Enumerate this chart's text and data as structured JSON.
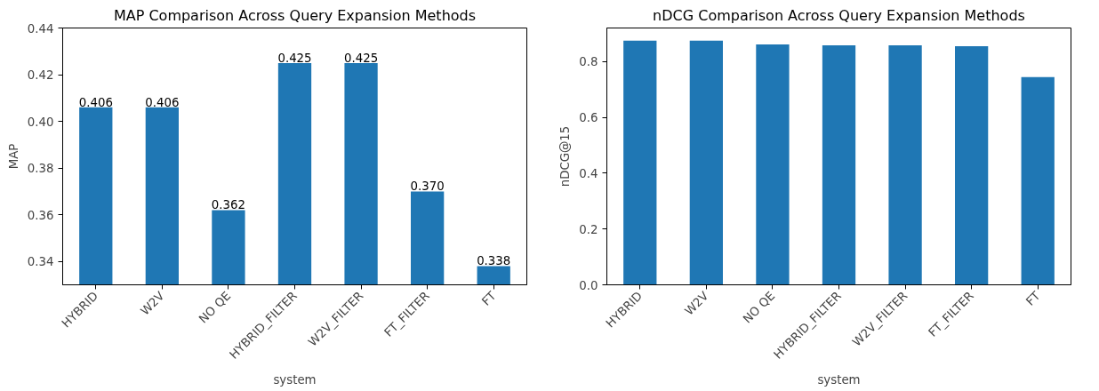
{
  "chart_data": [
    {
      "type": "bar",
      "title": "MAP Comparison Across Query Expansion Methods",
      "xlabel": "system",
      "ylabel": "MAP",
      "categories": [
        "HYBRID",
        "W2V",
        "NO QE",
        "HYBRID_FILTER",
        "W2V_FILTER",
        "FT_FILTER",
        "FT"
      ],
      "values": [
        0.406,
        0.406,
        0.362,
        0.425,
        0.425,
        0.37,
        0.338
      ],
      "color": "#1f77b4",
      "ylim": [
        0.33,
        0.44
      ],
      "yticks": [
        {
          "value": 0.34,
          "label": "0.34"
        },
        {
          "value": 0.36,
          "label": "0.36"
        },
        {
          "value": 0.38,
          "label": "0.38"
        },
        {
          "value": 0.4,
          "label": "0.40"
        },
        {
          "value": 0.42,
          "label": "0.42"
        },
        {
          "value": 0.44,
          "label": "0.44"
        }
      ],
      "data_labels": true,
      "value_labels": [
        "0.406",
        "0.406",
        "0.362",
        "0.425",
        "0.425",
        "0.370",
        "0.338"
      ],
      "grid": false
    },
    {
      "type": "bar",
      "title": "nDCG Comparison Across Query Expansion Methods",
      "xlabel": "system",
      "ylabel": "nDCG@15",
      "categories": [
        "HYBRID",
        "W2V",
        "NO QE",
        "HYBRID_FILTER",
        "W2V_FILTER",
        "FT_FILTER",
        "FT"
      ],
      "values": [
        0.875,
        0.875,
        0.861,
        0.858,
        0.858,
        0.855,
        0.744
      ],
      "color": "#1f77b4",
      "ylim": [
        0,
        0.92
      ],
      "yticks": [
        {
          "value": 0,
          "label": "0.0"
        },
        {
          "value": 0.2,
          "label": "0.2"
        },
        {
          "value": 0.4,
          "label": "0.4"
        },
        {
          "value": 0.6,
          "label": "0.6"
        },
        {
          "value": 0.8,
          "label": "0.8"
        }
      ],
      "grid": false
    }
  ]
}
